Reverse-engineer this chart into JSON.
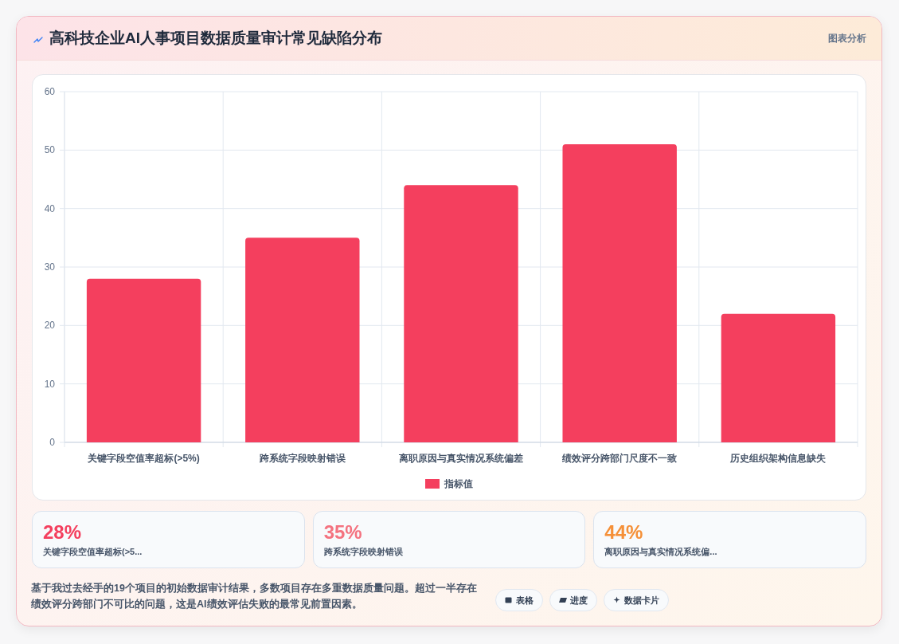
{
  "chart_data": [
    {
      "type": "bar",
      "title": "高科技企业AI人事项目数据质量审计常见缺陷分布",
      "categories": [
        "关键字段空值率超标(>5%)",
        "跨系统字段映射错误",
        "离职原因与真实情况系统偏差",
        "绩效评分跨部门尺度不一致",
        "历史组织架构信息缺失"
      ],
      "series": [
        {
          "name": "指标值",
          "color": "#f43f5e",
          "values": [
            28,
            35,
            44,
            51,
            22
          ]
        }
      ],
      "ylim": [
        0,
        60
      ],
      "yticks": [
        0,
        10,
        20,
        30,
        40,
        50,
        60
      ],
      "grid": true,
      "legend": "bottom",
      "annotations": [
        "图表分析",
        "基于我过去经手的19个项目的初始数据审计结果，多数项目存在多重数据质量问题。超过一半存在绩效评分跨部门不可比的问题，这是AI绩效评估失败的最常见前置因素。",
        "表格",
        "进度",
        "数据卡片"
      ]
    },
    {
      "type": "other",
      "annotations": [
        "28%",
        "关键字段空值率超标(>5...",
        "35%",
        "跨系统字段映射错误",
        "44%",
        "离职原因与真实情况系统偏..."
      ]
    }
  ]
}
